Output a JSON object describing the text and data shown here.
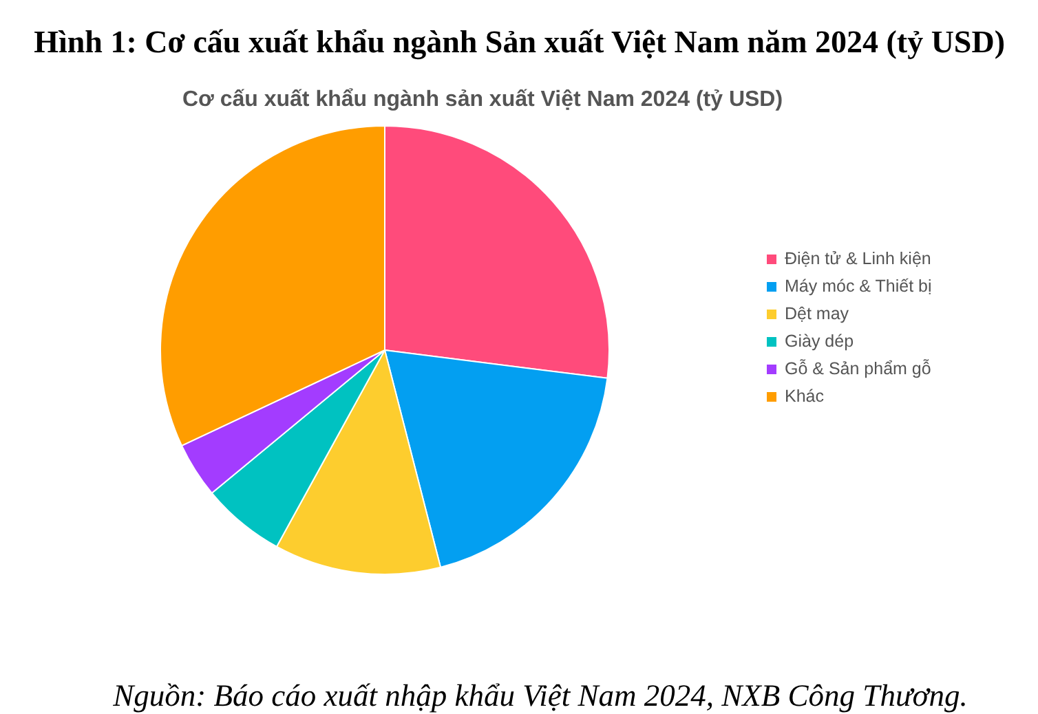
{
  "chart_data": {
    "type": "pie",
    "title": "Hình 1: Cơ cấu xuất khẩu ngành Sản xuất Việt Nam năm 2024 (tỷ USD)",
    "subtitle": "Cơ cấu xuất khẩu ngành sản xuất Việt Nam 2024 (tỷ USD)",
    "categories": [
      "Điện tử & Linh kiện",
      "Máy móc & Thiết bị",
      "Dệt may",
      "Giày dép",
      "Gỗ & Sản phẩm gỗ",
      "Khác"
    ],
    "values": [
      27,
      19,
      12,
      6,
      4,
      32
    ],
    "colors": [
      "#ff4b7b",
      "#039ff1",
      "#fdcd2e",
      "#00c2c1",
      "#a33cff",
      "#ff9d00"
    ],
    "legend": "right",
    "annotations": [
      "Nguồn: Báo cáo xuất nhập khẩu Việt Nam 2024, NXB Công Thương."
    ]
  }
}
